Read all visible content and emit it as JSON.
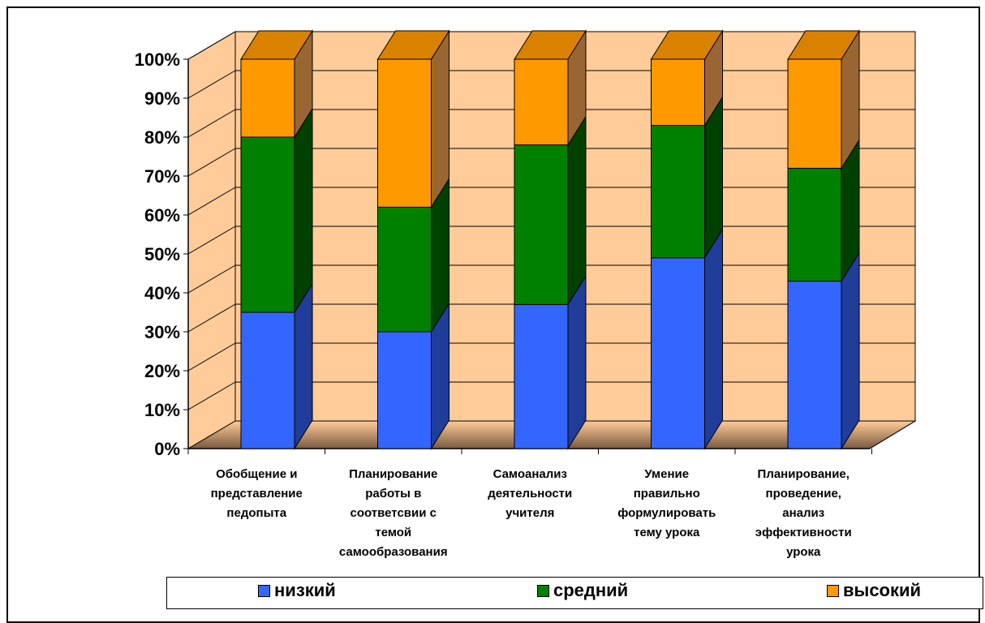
{
  "chart_data": {
    "type": "bar",
    "stacked": true,
    "percent": true,
    "three_d": true,
    "categories": [
      [
        "Обобщение и",
        "представление",
        "педопыта"
      ],
      [
        "Планирование",
        "работы в",
        "соответсвии с",
        "темой",
        "самообразования"
      ],
      [
        "Самоанализ",
        "деятельности",
        "учителя"
      ],
      [
        "Умение",
        "правильно",
        "формулировать",
        "тему урока"
      ],
      [
        "Планирование,",
        "проведение,",
        "анализ",
        "эффективности",
        "урока"
      ]
    ],
    "series": [
      {
        "name": "низкий",
        "values": [
          35,
          30,
          37,
          49,
          43
        ]
      },
      {
        "name": "средний",
        "values": [
          45,
          32,
          41,
          34,
          29
        ]
      },
      {
        "name": "высокий",
        "values": [
          20,
          38,
          22,
          17,
          28
        ]
      }
    ],
    "y_ticks": [
      "0%",
      "10%",
      "20%",
      "30%",
      "40%",
      "50%",
      "60%",
      "70%",
      "80%",
      "90%",
      "100%"
    ],
    "ylim": [
      0,
      100
    ],
    "grid": true,
    "legend_position": "bottom",
    "colors": {
      "series_front": [
        "#3366FF",
        "#008000",
        "#FF9900"
      ],
      "series_side": [
        "#1F3D99",
        "#004000",
        "#996633"
      ],
      "wall": "#FFCC99",
      "floor_shadow": "#8C6B4F"
    }
  }
}
